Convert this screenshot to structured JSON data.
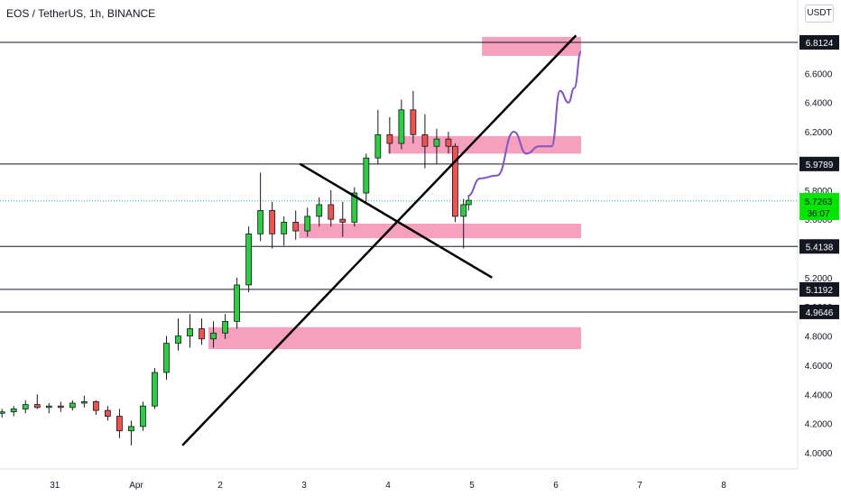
{
  "header": {
    "symbol_title": "EOS / TetherUS, 1h, BINANCE",
    "currency_button": "USDT"
  },
  "price_tags": {
    "current_price": "5.7263",
    "countdown": "36:07"
  },
  "colors": {
    "up_candle": "#26a69a",
    "down_candle": "#ef5350",
    "zone_fill": "#f48fb1",
    "projection_line": "#7e57c2",
    "current_price_tag": "#00e600"
  },
  "chart_data": {
    "type": "candlestick",
    "title": "EOS / TetherUS, 1h, BINANCE",
    "y_axis_ticks": [
      "6.6000",
      "6.4000",
      "6.2000",
      "5.8000",
      "5.6000",
      "5.2000",
      "5.0000",
      "4.8000",
      "4.6000",
      "4.4000",
      "4.2000",
      "4.0000"
    ],
    "x_axis_ticks": [
      "31",
      "Apr",
      "2",
      "3",
      "4",
      "5",
      "6",
      "7",
      "8"
    ],
    "ylim": [
      3.9,
      6.95
    ],
    "horizontal_levels": [
      {
        "label": "6.8124",
        "value": 6.8124
      },
      {
        "label": "5.9789",
        "value": 5.9789
      },
      {
        "label": "5.4138",
        "value": 5.4138
      },
      {
        "label": "5.1192",
        "value": 5.1192
      },
      {
        "label": "4.9646",
        "value": 4.9646
      }
    ],
    "current_price": 5.7263,
    "zones": [
      {
        "day_start": 4.12,
        "day_end": 5.3,
        "y_low": 6.72,
        "y_high": 6.85
      },
      {
        "day_start": 3.0,
        "day_end": 5.3,
        "y_low": 6.05,
        "y_high": 6.17
      },
      {
        "day_start": 1.94,
        "day_end": 5.3,
        "y_low": 5.47,
        "y_high": 5.57
      },
      {
        "day_start": 0.86,
        "day_end": 5.3,
        "y_low": 4.71,
        "y_high": 4.86
      }
    ],
    "trendlines": [
      {
        "from": [
          0.55,
          4.05
        ],
        "to": [
          5.24,
          6.86
        ]
      },
      {
        "from": [
          1.95,
          5.98
        ],
        "to": [
          4.24,
          5.2
        ]
      }
    ],
    "projection_path": [
      [
        3.95,
        5.76
      ],
      [
        4.1,
        5.88
      ],
      [
        4.3,
        5.9
      ],
      [
        4.5,
        6.2
      ],
      [
        4.65,
        6.05
      ],
      [
        4.8,
        6.1
      ],
      [
        4.95,
        6.1
      ],
      [
        5.05,
        6.48
      ],
      [
        5.15,
        6.4
      ],
      [
        5.22,
        6.5
      ],
      [
        5.3,
        6.75
      ]
    ],
    "candles": [
      {
        "day": -1.6,
        "o": 4.27,
        "h": 4.3,
        "l": 4.24,
        "c": 4.28
      },
      {
        "day": -1.46,
        "o": 4.28,
        "h": 4.32,
        "l": 4.25,
        "c": 4.3
      },
      {
        "day": -1.32,
        "o": 4.3,
        "h": 4.36,
        "l": 4.27,
        "c": 4.33
      },
      {
        "day": -1.18,
        "o": 4.33,
        "h": 4.4,
        "l": 4.3,
        "c": 4.31
      },
      {
        "day": -1.04,
        "o": 4.31,
        "h": 4.34,
        "l": 4.27,
        "c": 4.32
      },
      {
        "day": -0.9,
        "o": 4.32,
        "h": 4.35,
        "l": 4.28,
        "c": 4.31
      },
      {
        "day": -0.76,
        "o": 4.31,
        "h": 4.36,
        "l": 4.29,
        "c": 4.34
      },
      {
        "day": -0.62,
        "o": 4.34,
        "h": 4.39,
        "l": 4.31,
        "c": 4.35
      },
      {
        "day": -0.48,
        "o": 4.35,
        "h": 4.36,
        "l": 4.26,
        "c": 4.29
      },
      {
        "day": -0.34,
        "o": 4.29,
        "h": 4.32,
        "l": 4.22,
        "c": 4.25
      },
      {
        "day": -0.2,
        "o": 4.25,
        "h": 4.3,
        "l": 4.1,
        "c": 4.15
      },
      {
        "day": -0.06,
        "o": 4.15,
        "h": 4.22,
        "l": 4.05,
        "c": 4.18
      },
      {
        "day": 0.08,
        "o": 4.18,
        "h": 4.35,
        "l": 4.15,
        "c": 4.32
      },
      {
        "day": 0.22,
        "o": 4.32,
        "h": 4.58,
        "l": 4.3,
        "c": 4.55
      },
      {
        "day": 0.36,
        "o": 4.55,
        "h": 4.8,
        "l": 4.5,
        "c": 4.75
      },
      {
        "day": 0.5,
        "o": 4.75,
        "h": 4.92,
        "l": 4.7,
        "c": 4.8
      },
      {
        "day": 0.64,
        "o": 4.8,
        "h": 4.95,
        "l": 4.72,
        "c": 4.85
      },
      {
        "day": 0.78,
        "o": 4.85,
        "h": 4.92,
        "l": 4.74,
        "c": 4.78
      },
      {
        "day": 0.92,
        "o": 4.78,
        "h": 4.9,
        "l": 4.72,
        "c": 4.82
      },
      {
        "day": 1.06,
        "o": 4.82,
        "h": 4.95,
        "l": 4.78,
        "c": 4.9
      },
      {
        "day": 1.2,
        "o": 4.9,
        "h": 5.2,
        "l": 4.85,
        "c": 5.15
      },
      {
        "day": 1.34,
        "o": 5.15,
        "h": 5.55,
        "l": 5.1,
        "c": 5.5
      },
      {
        "day": 1.48,
        "o": 5.5,
        "h": 5.92,
        "l": 5.45,
        "c": 5.66
      },
      {
        "day": 1.62,
        "o": 5.66,
        "h": 5.72,
        "l": 5.4,
        "c": 5.5
      },
      {
        "day": 1.76,
        "o": 5.5,
        "h": 5.62,
        "l": 5.42,
        "c": 5.58
      },
      {
        "day": 1.9,
        "o": 5.58,
        "h": 5.66,
        "l": 5.46,
        "c": 5.52
      },
      {
        "day": 2.04,
        "o": 5.52,
        "h": 5.68,
        "l": 5.48,
        "c": 5.62
      },
      {
        "day": 2.18,
        "o": 5.62,
        "h": 5.75,
        "l": 5.55,
        "c": 5.7
      },
      {
        "day": 2.32,
        "o": 5.7,
        "h": 5.8,
        "l": 5.55,
        "c": 5.6
      },
      {
        "day": 2.46,
        "o": 5.6,
        "h": 5.72,
        "l": 5.48,
        "c": 5.58
      },
      {
        "day": 2.6,
        "o": 5.58,
        "h": 5.82,
        "l": 5.55,
        "c": 5.78
      },
      {
        "day": 2.74,
        "o": 5.78,
        "h": 6.05,
        "l": 5.72,
        "c": 6.02
      },
      {
        "day": 2.88,
        "o": 6.02,
        "h": 6.35,
        "l": 5.98,
        "c": 6.18
      },
      {
        "day": 3.02,
        "o": 6.18,
        "h": 6.3,
        "l": 6.05,
        "c": 6.12
      },
      {
        "day": 3.16,
        "o": 6.12,
        "h": 6.42,
        "l": 6.08,
        "c": 6.35
      },
      {
        "day": 3.3,
        "o": 6.35,
        "h": 6.48,
        "l": 6.12,
        "c": 6.18
      },
      {
        "day": 3.44,
        "o": 6.18,
        "h": 6.32,
        "l": 5.95,
        "c": 6.1
      },
      {
        "day": 3.58,
        "o": 6.1,
        "h": 6.22,
        "l": 5.98,
        "c": 6.15
      },
      {
        "day": 3.72,
        "o": 6.15,
        "h": 6.2,
        "l": 6.05,
        "c": 6.1
      },
      {
        "day": 3.8,
        "o": 6.1,
        "h": 6.12,
        "l": 5.58,
        "c": 5.62
      },
      {
        "day": 3.9,
        "o": 5.62,
        "h": 5.74,
        "l": 5.4,
        "c": 5.7
      },
      {
        "day": 3.96,
        "o": 5.7,
        "h": 5.76,
        "l": 5.66,
        "c": 5.73
      }
    ]
  }
}
